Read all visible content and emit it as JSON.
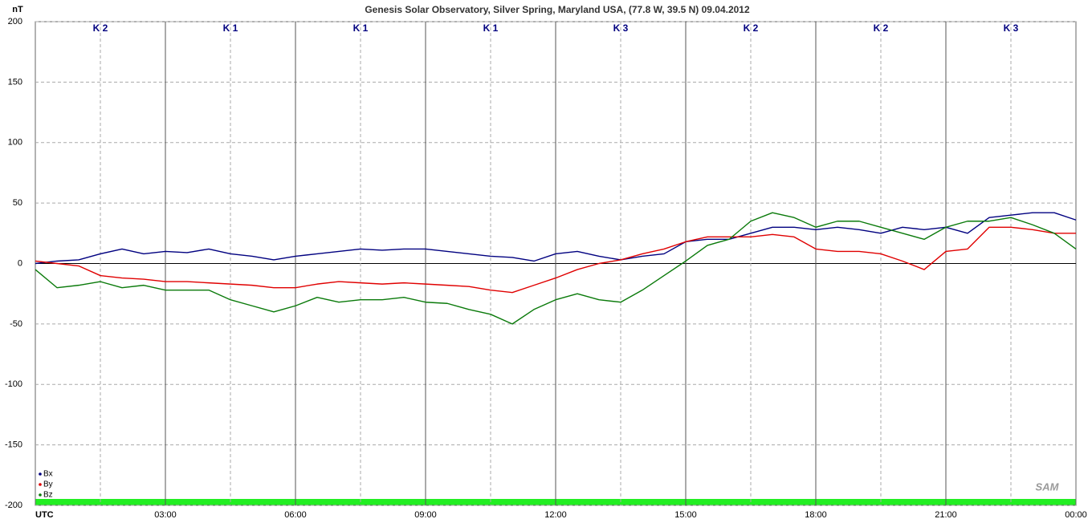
{
  "chart_data": {
    "type": "line",
    "title": "Genesis Solar Observatory, Silver Spring, Maryland USA, (77.8 W, 39.5 N)  09.04.2012",
    "y_label": "nT",
    "logo": "SAM",
    "k_indices": [
      "K 2",
      "K 1",
      "K 1",
      "K 1",
      "K 3",
      "K 2",
      "K 2",
      "K 3"
    ],
    "x": [
      0,
      0.5,
      1,
      1.5,
      2,
      2.5,
      3,
      3.5,
      4,
      4.5,
      5,
      5.5,
      6,
      6.5,
      7,
      7.5,
      8,
      8.5,
      9,
      9.5,
      10,
      10.5,
      11,
      11.5,
      12,
      12.5,
      13,
      13.5,
      14,
      14.5,
      15,
      15.5,
      16,
      16.5,
      17,
      17.5,
      18,
      18.5,
      19,
      19.5,
      20,
      20.5,
      21,
      21.5,
      22,
      22.5,
      23,
      23.5,
      24
    ],
    "xlim": [
      0,
      24
    ],
    "xticks": [
      {
        "value": 0,
        "label": "UTC"
      },
      {
        "value": 3,
        "label": "03:00"
      },
      {
        "value": 6,
        "label": "06:00"
      },
      {
        "value": 9,
        "label": "09:00"
      },
      {
        "value": 12,
        "label": "12:00"
      },
      {
        "value": 15,
        "label": "15:00"
      },
      {
        "value": 18,
        "label": "18:00"
      },
      {
        "value": 21,
        "label": "21:00"
      },
      {
        "value": 24,
        "label": "00:00"
      }
    ],
    "ylim": [
      -200,
      200
    ],
    "yticks": [
      -200,
      -150,
      -100,
      -50,
      0,
      50,
      100,
      150,
      200
    ],
    "grid": true,
    "legend": "bottom-left",
    "series": [
      {
        "name": "Bx",
        "color": "#000080",
        "values": [
          0,
          2,
          3,
          8,
          12,
          8,
          10,
          9,
          12,
          8,
          6,
          3,
          6,
          8,
          10,
          12,
          11,
          12,
          12,
          10,
          8,
          6,
          5,
          2,
          8,
          10,
          6,
          3,
          6,
          8,
          18,
          20,
          20,
          25,
          30,
          30,
          28,
          30,
          28,
          25,
          30,
          28,
          30,
          25,
          38,
          40,
          42,
          42,
          36
        ]
      },
      {
        "name": "By",
        "color": "#e00000",
        "values": [
          2,
          0,
          -2,
          -10,
          -12,
          -13,
          -15,
          -15,
          -16,
          -17,
          -18,
          -20,
          -20,
          -17,
          -15,
          -16,
          -17,
          -16,
          -17,
          -18,
          -19,
          -22,
          -24,
          -18,
          -12,
          -5,
          0,
          3,
          8,
          12,
          18,
          22,
          22,
          22,
          24,
          22,
          12,
          10,
          10,
          8,
          2,
          -5,
          10,
          12,
          30,
          30,
          28,
          25,
          25
        ]
      },
      {
        "name": "Bz",
        "color": "#0a7a0a",
        "values": [
          -5,
          -20,
          -18,
          -15,
          -20,
          -18,
          -22,
          -22,
          -22,
          -30,
          -35,
          -40,
          -35,
          -28,
          -32,
          -30,
          -30,
          -28,
          -32,
          -33,
          -38,
          -42,
          -50,
          -38,
          -30,
          -25,
          -30,
          -32,
          -22,
          -10,
          2,
          15,
          20,
          35,
          42,
          38,
          30,
          35,
          35,
          30,
          25,
          20,
          30,
          35,
          35,
          38,
          32,
          25,
          12
        ]
      }
    ]
  }
}
